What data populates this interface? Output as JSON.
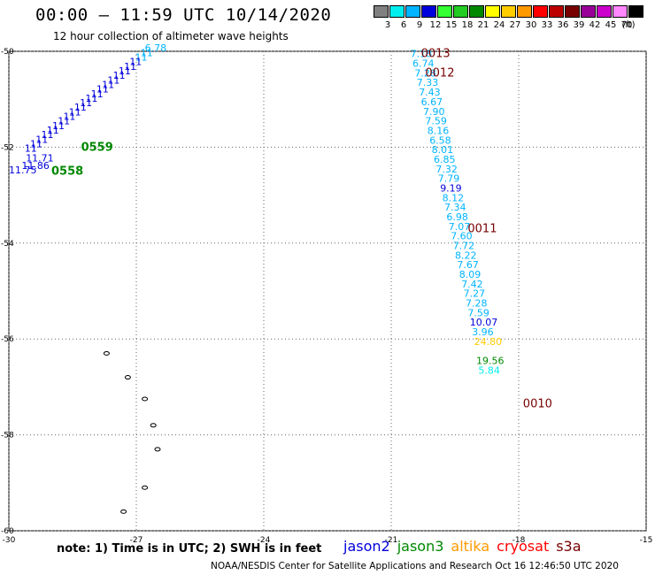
{
  "header": {
    "title": "00:00 – 11:59 UTC 10/14/2020",
    "subtitle": "12 hour collection of altimeter wave heights"
  },
  "colorbar": {
    "unit": "(ft)",
    "bins": [
      {
        "label": "3",
        "color": "#808080"
      },
      {
        "label": "6",
        "color": "#00eeee"
      },
      {
        "label": "9",
        "color": "#00b4ff"
      },
      {
        "label": "12",
        "color": "#0000dd"
      },
      {
        "label": "15",
        "color": "#33ff33"
      },
      {
        "label": "18",
        "color": "#22cc22"
      },
      {
        "label": "21",
        "color": "#008800"
      },
      {
        "label": "24",
        "color": "#ffff00"
      },
      {
        "label": "27",
        "color": "#ffcc00"
      },
      {
        "label": "30",
        "color": "#ff9900"
      },
      {
        "label": "33",
        "color": "#ff0000"
      },
      {
        "label": "36",
        "color": "#bb0000"
      },
      {
        "label": "39",
        "color": "#770000"
      },
      {
        "label": "42",
        "color": "#990099"
      },
      {
        "label": "45",
        "color": "#cc00cc"
      },
      {
        "label": "70",
        "color": "#ff88ff"
      },
      {
        "label": "",
        "color": "#000000"
      }
    ]
  },
  "map": {
    "lon_range": [
      -30,
      -15
    ],
    "lat_range": [
      -60,
      -50
    ],
    "x_ticks": [
      -30,
      -27,
      -24,
      -21,
      -18,
      -15
    ],
    "y_ticks": [
      -50,
      -52,
      -54,
      -56,
      -58,
      -60
    ],
    "grid": true
  },
  "chart_data": {
    "type": "scatter",
    "x_axis": "longitude",
    "y_axis": "latitude",
    "series": [
      {
        "name": "jason2",
        "color": "#00b4ff",
        "points": [
          {
            "lon": -20.55,
            "lat": -50.05,
            "swh": "7.18"
          },
          {
            "lon": -20.5,
            "lat": -50.25,
            "swh": "6.74"
          },
          {
            "lon": -20.45,
            "lat": -50.45,
            "swh": "7.28"
          },
          {
            "lon": -20.4,
            "lat": -50.65,
            "swh": "7.33"
          },
          {
            "lon": -20.35,
            "lat": -50.85,
            "swh": "7.43"
          },
          {
            "lon": -20.3,
            "lat": -51.05,
            "swh": "6.67"
          },
          {
            "lon": -20.25,
            "lat": -51.25,
            "swh": "7.90"
          },
          {
            "lon": -20.2,
            "lat": -51.45,
            "swh": "7.59"
          },
          {
            "lon": -20.15,
            "lat": -51.65,
            "swh": "8.16"
          },
          {
            "lon": -20.1,
            "lat": -51.85,
            "swh": "6.58"
          },
          {
            "lon": -20.05,
            "lat": -52.05,
            "swh": "8.01"
          },
          {
            "lon": -20.0,
            "lat": -52.25,
            "swh": "6.85"
          },
          {
            "lon": -19.95,
            "lat": -52.45,
            "swh": "7.32"
          },
          {
            "lon": -19.9,
            "lat": -52.65,
            "swh": "7.79"
          },
          {
            "lon": -19.85,
            "lat": -52.85,
            "swh": "9.19",
            "color": "#0000dd"
          },
          {
            "lon": -19.8,
            "lat": -53.05,
            "swh": "8.12"
          },
          {
            "lon": -19.75,
            "lat": -53.25,
            "swh": "7.34"
          },
          {
            "lon": -19.7,
            "lat": -53.45,
            "swh": "6.98"
          },
          {
            "lon": -19.65,
            "lat": -53.65,
            "swh": "7.07"
          },
          {
            "lon": -19.6,
            "lat": -53.85,
            "swh": "7.60"
          },
          {
            "lon": -19.55,
            "lat": -54.05,
            "swh": "7.72"
          },
          {
            "lon": -19.5,
            "lat": -54.25,
            "swh": "8.22"
          },
          {
            "lon": -19.45,
            "lat": -54.45,
            "swh": "7.67"
          },
          {
            "lon": -19.4,
            "lat": -54.65,
            "swh": "8.09"
          },
          {
            "lon": -19.35,
            "lat": -54.85,
            "swh": "7.42"
          },
          {
            "lon": -19.3,
            "lat": -55.05,
            "swh": "7.27"
          },
          {
            "lon": -19.25,
            "lat": -55.25,
            "swh": "7.28"
          },
          {
            "lon": -19.2,
            "lat": -55.45,
            "swh": "7.59"
          },
          {
            "lon": -19.15,
            "lat": -55.65,
            "swh": "10.07",
            "color": "#0000dd"
          },
          {
            "lon": -19.1,
            "lat": -55.85,
            "swh": "3.96"
          },
          {
            "lon": -19.05,
            "lat": -56.05,
            "swh": "24.80",
            "color": "#ffcc00"
          },
          {
            "lon": -19.0,
            "lat": -56.45,
            "swh": "19.56",
            "color": "#008800"
          },
          {
            "lon": -18.95,
            "lat": -56.65,
            "swh": "5.84",
            "color": "#00eeee"
          }
        ]
      }
    ],
    "time_labels": [
      {
        "text": "0013",
        "lon": -20.3,
        "lat": -50.05,
        "color": "#770000"
      },
      {
        "text": "0012",
        "lon": -20.2,
        "lat": -50.45,
        "color": "#770000"
      },
      {
        "text": "0011",
        "lon": -19.2,
        "lat": -53.7,
        "color": "#770000"
      },
      {
        "text": "0010",
        "lon": -17.9,
        "lat": -57.35,
        "color": "#770000"
      },
      {
        "text": "0559",
        "lon": -28.3,
        "lat": -52.0,
        "color": "#008800"
      },
      {
        "text": "0558",
        "lon": -29.0,
        "lat": -52.5,
        "color": "#008800"
      }
    ],
    "left_track_labels": [
      {
        "text": "6.78",
        "lon": -26.8,
        "lat": -50.0,
        "color": "#00b4ff"
      },
      {
        "text": "11.75",
        "lon": -30.0,
        "lat": -52.55,
        "color": "#0000dd"
      },
      {
        "text": "11.71",
        "lon": -29.6,
        "lat": -52.3,
        "color": "#0000dd"
      },
      {
        "text": "11.86",
        "lon": -29.7,
        "lat": -52.45,
        "color": "#0000dd"
      }
    ]
  },
  "footer": {
    "note": "note: 1) Time is in UTC; 2) SWH is in feet",
    "satellites": [
      {
        "name": "jason2",
        "color": "#0000dd"
      },
      {
        "name": "jason3",
        "color": "#008800"
      },
      {
        "name": "altika",
        "color": "#ff9900"
      },
      {
        "name": "cryosat",
        "color": "#ff0000"
      },
      {
        "name": "s3a",
        "color": "#770000"
      }
    ],
    "credit": "NOAA/NESDIS Center for Satellite Applications and Research     Oct 16 12:46:50 UTC 2020"
  }
}
